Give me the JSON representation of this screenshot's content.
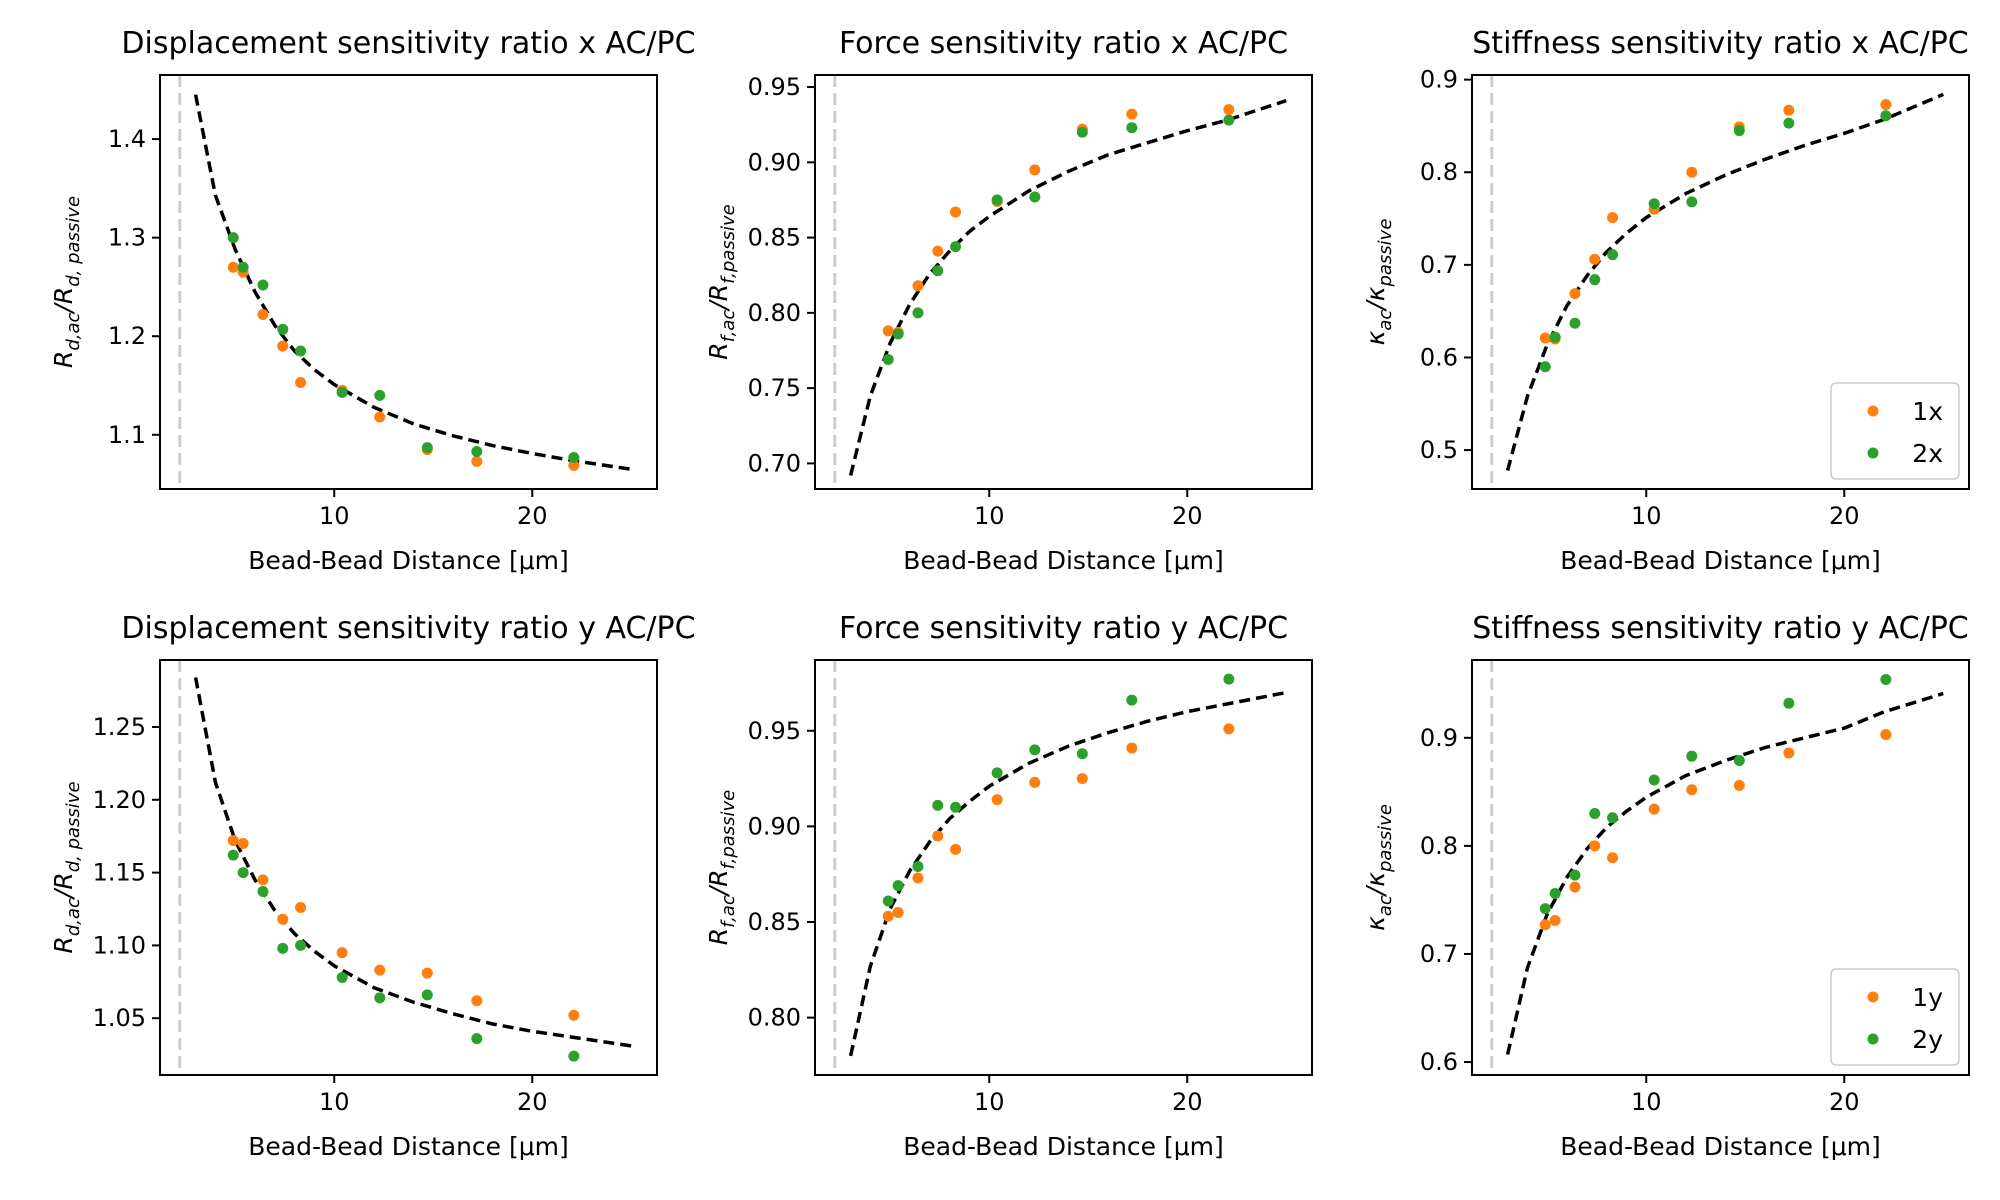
{
  "colors": {
    "series1": "#ff7f0e",
    "series2": "#2ca02c",
    "fit": "#000000",
    "vline": "#cccccc"
  },
  "chart_data": [
    {
      "type": "scatter",
      "title": "Displacement sensitivity ratio x AC/PC",
      "xlabel": "Bead-Bead Distance [μm]",
      "ylabel": {
        "main": "R",
        "sub1": "d,ac",
        "mid": "/R",
        "sub2": "d, passive"
      },
      "xlim": [
        1.2,
        26.3
      ],
      "ylim": [
        1.045,
        1.465
      ],
      "xticks": [
        10,
        20
      ],
      "yticks": [
        1.1,
        1.2,
        1.3,
        1.4
      ],
      "ytick_labels": [
        "1.1",
        "1.2",
        "1.3",
        "1.4"
      ],
      "vline_x": 2.2,
      "legend": null,
      "series": [
        {
          "color": "series1",
          "x": [
            4.9,
            5.4,
            6.4,
            7.4,
            8.3,
            10.4,
            12.3,
            14.7,
            17.2,
            22.1
          ],
          "y": [
            1.27,
            1.265,
            1.222,
            1.19,
            1.153,
            1.145,
            1.118,
            1.085,
            1.073,
            1.069
          ]
        },
        {
          "color": "series2",
          "x": [
            4.9,
            5.4,
            6.4,
            7.4,
            8.3,
            10.4,
            12.3,
            14.7,
            17.2,
            22.1
          ],
          "y": [
            1.3,
            1.27,
            1.252,
            1.207,
            1.185,
            1.143,
            1.14,
            1.087,
            1.083,
            1.077
          ]
        }
      ],
      "fit": {
        "x": [
          3,
          4,
          5,
          6,
          7,
          8,
          9,
          10,
          12,
          14,
          16,
          18,
          20,
          22,
          25
        ],
        "y": [
          1.445,
          1.343,
          1.288,
          1.245,
          1.211,
          1.185,
          1.166,
          1.151,
          1.128,
          1.111,
          1.099,
          1.089,
          1.081,
          1.074,
          1.065
        ]
      }
    },
    {
      "type": "scatter",
      "title": "Force sensitivity ratio x AC/PC",
      "xlabel": "Bead-Bead Distance [μm]",
      "ylabel": {
        "main": "R",
        "sub1": "f,ac",
        "mid": "/R",
        "sub2": "f,passive"
      },
      "xlim": [
        1.2,
        26.3
      ],
      "ylim": [
        0.683,
        0.958
      ],
      "xticks": [
        10,
        20
      ],
      "yticks": [
        0.7,
        0.75,
        0.8,
        0.85,
        0.9,
        0.95
      ],
      "ytick_labels": [
        "0.70",
        "0.75",
        "0.80",
        "0.85",
        "0.90",
        "0.95"
      ],
      "vline_x": 2.2,
      "legend": null,
      "series": [
        {
          "color": "series1",
          "x": [
            4.9,
            5.4,
            6.4,
            7.4,
            8.3,
            10.4,
            12.3,
            14.7,
            17.2,
            22.1
          ],
          "y": [
            0.788,
            0.787,
            0.818,
            0.841,
            0.867,
            0.874,
            0.895,
            0.922,
            0.932,
            0.935
          ]
        },
        {
          "color": "series2",
          "x": [
            4.9,
            5.4,
            6.4,
            7.4,
            8.3,
            10.4,
            12.3,
            14.7,
            17.2,
            22.1
          ],
          "y": [
            0.769,
            0.786,
            0.8,
            0.828,
            0.844,
            0.875,
            0.877,
            0.92,
            0.923,
            0.928
          ]
        }
      ],
      "fit": {
        "x": [
          3,
          4,
          5,
          6,
          7,
          8,
          9,
          10,
          12,
          14,
          16,
          18,
          20,
          22,
          25
        ],
        "y": [
          0.692,
          0.745,
          0.78,
          0.806,
          0.826,
          0.841,
          0.854,
          0.864,
          0.881,
          0.894,
          0.905,
          0.913,
          0.921,
          0.928,
          0.941
        ]
      }
    },
    {
      "type": "scatter",
      "title": "Stiffness sensitivity ratio x AC/PC",
      "xlabel": "Bead-Bead Distance [μm]",
      "ylabel": {
        "main": "κ",
        "sub1": "ac",
        "mid": "/κ",
        "sub2": "passive"
      },
      "xlim": [
        1.2,
        26.3
      ],
      "ylim": [
        0.458,
        0.905
      ],
      "xticks": [
        10,
        20
      ],
      "yticks": [
        0.5,
        0.6,
        0.7,
        0.8,
        0.9
      ],
      "ytick_labels": [
        "0.5",
        "0.6",
        "0.7",
        "0.8",
        "0.9"
      ],
      "vline_x": 2.2,
      "legend": {
        "position": "lower-right",
        "labels": [
          "1x",
          "2x"
        ]
      },
      "series": [
        {
          "color": "series1",
          "x": [
            4.9,
            5.4,
            6.4,
            7.4,
            8.3,
            10.4,
            12.3,
            14.7,
            17.2,
            22.1
          ],
          "y": [
            0.621,
            0.62,
            0.669,
            0.706,
            0.751,
            0.76,
            0.8,
            0.849,
            0.867,
            0.873
          ]
        },
        {
          "color": "series2",
          "x": [
            4.9,
            5.4,
            6.4,
            7.4,
            8.3,
            10.4,
            12.3,
            14.7,
            17.2,
            22.1
          ],
          "y": [
            0.59,
            0.622,
            0.637,
            0.684,
            0.711,
            0.766,
            0.768,
            0.845,
            0.853,
            0.861
          ]
        }
      ],
      "fit": {
        "x": [
          3,
          4,
          5,
          6,
          7,
          8,
          9,
          10,
          12,
          14,
          16,
          18,
          20,
          22,
          25
        ],
        "y": [
          0.478,
          0.558,
          0.614,
          0.656,
          0.688,
          0.714,
          0.734,
          0.751,
          0.777,
          0.797,
          0.814,
          0.829,
          0.842,
          0.857,
          0.884
        ]
      }
    },
    {
      "type": "scatter",
      "title": "Displacement sensitivity ratio y AC/PC",
      "xlabel": "Bead-Bead Distance [μm]",
      "ylabel": {
        "main": "R",
        "sub1": "d,ac",
        "mid": "/R",
        "sub2": "d, passive"
      },
      "xlim": [
        1.2,
        26.3
      ],
      "ylim": [
        1.011,
        1.296
      ],
      "xticks": [
        10,
        20
      ],
      "yticks": [
        1.05,
        1.1,
        1.15,
        1.2,
        1.25
      ],
      "ytick_labels": [
        "1.05",
        "1.10",
        "1.15",
        "1.20",
        "1.25"
      ],
      "vline_x": 2.2,
      "legend": null,
      "series": [
        {
          "color": "series1",
          "x": [
            4.9,
            5.4,
            6.4,
            7.4,
            8.3,
            10.4,
            12.3,
            14.7,
            17.2,
            22.1
          ],
          "y": [
            1.172,
            1.17,
            1.145,
            1.118,
            1.126,
            1.095,
            1.083,
            1.081,
            1.062,
            1.052
          ]
        },
        {
          "color": "series2",
          "x": [
            4.9,
            5.4,
            6.4,
            7.4,
            8.3,
            10.4,
            12.3,
            14.7,
            17.2,
            22.1
          ],
          "y": [
            1.162,
            1.15,
            1.137,
            1.098,
            1.1,
            1.078,
            1.064,
            1.066,
            1.036,
            1.024
          ]
        }
      ],
      "fit": {
        "x": [
          3,
          4,
          5,
          6,
          7,
          8,
          9,
          10,
          12,
          14,
          16,
          18,
          20,
          22,
          25
        ],
        "y": [
          1.284,
          1.212,
          1.172,
          1.145,
          1.124,
          1.108,
          1.096,
          1.086,
          1.071,
          1.061,
          1.053,
          1.046,
          1.041,
          1.037,
          1.031
        ]
      }
    },
    {
      "type": "scatter",
      "title": "Force sensitivity ratio y AC/PC",
      "xlabel": "Bead-Bead Distance [μm]",
      "ylabel": {
        "main": "R",
        "sub1": "f,ac",
        "mid": "/R",
        "sub2": "f,passive"
      },
      "xlim": [
        1.2,
        26.3
      ],
      "ylim": [
        0.77,
        0.987
      ],
      "xticks": [
        10,
        20
      ],
      "yticks": [
        0.8,
        0.85,
        0.9,
        0.95
      ],
      "ytick_labels": [
        "0.80",
        "0.85",
        "0.90",
        "0.95"
      ],
      "vline_x": 2.2,
      "legend": null,
      "series": [
        {
          "color": "series1",
          "x": [
            4.9,
            5.4,
            6.4,
            7.4,
            8.3,
            10.4,
            12.3,
            14.7,
            17.2,
            22.1
          ],
          "y": [
            0.853,
            0.855,
            0.873,
            0.895,
            0.888,
            0.914,
            0.923,
            0.925,
            0.941,
            0.951
          ]
        },
        {
          "color": "series2",
          "x": [
            4.9,
            5.4,
            6.4,
            7.4,
            8.3,
            10.4,
            12.3,
            14.7,
            17.2,
            22.1
          ],
          "y": [
            0.861,
            0.869,
            0.879,
            0.911,
            0.91,
            0.928,
            0.94,
            0.938,
            0.966,
            0.977
          ]
        }
      ],
      "fit": {
        "x": [
          3,
          4,
          5,
          6,
          7,
          8,
          9,
          10,
          12,
          14,
          16,
          18,
          20,
          22,
          25
        ],
        "y": [
          0.78,
          0.827,
          0.857,
          0.877,
          0.892,
          0.904,
          0.913,
          0.921,
          0.933,
          0.942,
          0.949,
          0.955,
          0.96,
          0.964,
          0.97
        ]
      }
    },
    {
      "type": "scatter",
      "title": "Stiffness sensitivity ratio y AC/PC",
      "xlabel": "Bead-Bead Distance [μm]",
      "ylabel": {
        "main": "κ",
        "sub1": "ac",
        "mid": "/κ",
        "sub2": "passive"
      },
      "xlim": [
        1.2,
        26.3
      ],
      "ylim": [
        0.588,
        0.972
      ],
      "xticks": [
        10,
        20
      ],
      "yticks": [
        0.6,
        0.7,
        0.8,
        0.9
      ],
      "ytick_labels": [
        "0.6",
        "0.7",
        "0.8",
        "0.9"
      ],
      "vline_x": 2.2,
      "legend": {
        "position": "lower-right",
        "labels": [
          "1y",
          "2y"
        ]
      },
      "series": [
        {
          "color": "series1",
          "x": [
            4.9,
            5.4,
            6.4,
            7.4,
            8.3,
            10.4,
            12.3,
            14.7,
            17.2,
            22.1
          ],
          "y": [
            0.727,
            0.731,
            0.762,
            0.8,
            0.789,
            0.834,
            0.852,
            0.856,
            0.886,
            0.903
          ]
        },
        {
          "color": "series2",
          "x": [
            4.9,
            5.4,
            6.4,
            7.4,
            8.3,
            10.4,
            12.3,
            14.7,
            17.2,
            22.1
          ],
          "y": [
            0.742,
            0.756,
            0.773,
            0.83,
            0.826,
            0.861,
            0.883,
            0.879,
            0.932,
            0.954
          ]
        }
      ],
      "fit": {
        "x": [
          3,
          4,
          5,
          6,
          7,
          8,
          9,
          10,
          12,
          14,
          16,
          18,
          20,
          22,
          25
        ],
        "y": [
          0.607,
          0.687,
          0.737,
          0.771,
          0.797,
          0.817,
          0.832,
          0.845,
          0.865,
          0.879,
          0.891,
          0.9,
          0.909,
          0.924,
          0.941
        ]
      }
    }
  ]
}
